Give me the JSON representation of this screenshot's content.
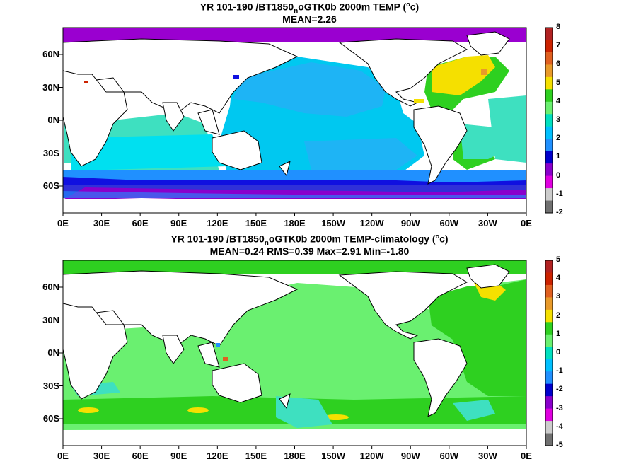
{
  "panels": [
    {
      "title_main": "YR 101-190 /BT1850",
      "title_sub": "n",
      "title_rest": "oGTK0b 2000m TEMP (",
      "unit_sup": "o",
      "unit_end": "c)",
      "stats": "MEAN=2.26",
      "colorbar_labels": [
        "8",
        "7",
        "6",
        "5",
        "4",
        "3",
        "2",
        "1",
        "0",
        "-1",
        "-2"
      ],
      "colorbar_colors": [
        "#b22222",
        "#cc2200",
        "#e06020",
        "#e89a2a",
        "#f5e000",
        "#2ed020",
        "#6af070",
        "#00e0c0",
        "#00c0ff",
        "#2090ff",
        "#0000cc",
        "#8a00cc",
        "#e000e0",
        "#cccccc",
        "#707070"
      ]
    },
    {
      "title_main": "YR 101-190 /BT1850",
      "title_sub": "n",
      "title_rest": "oGTK0b 2000m TEMP-climatology (",
      "unit_sup": "o",
      "unit_end": "c)",
      "stats": "MEAN=0.24   RMS=0.39   Max=2.91   Min=-1.80",
      "colorbar_labels": [
        "5",
        "4",
        "3",
        "2",
        "1",
        "0",
        "-1",
        "-2",
        "-3",
        "-4",
        "-5"
      ],
      "colorbar_colors": [
        "#b22222",
        "#cc2200",
        "#e06020",
        "#e89a2a",
        "#f5e000",
        "#2ed020",
        "#6af070",
        "#00e0c0",
        "#00c0ff",
        "#2090ff",
        "#0000cc",
        "#8a00cc",
        "#e000e0",
        "#cccccc",
        "#707070"
      ]
    }
  ],
  "lon_labels": [
    "0E",
    "30E",
    "60E",
    "90E",
    "120E",
    "150E",
    "180E",
    "150W",
    "120W",
    "90W",
    "60W",
    "30W",
    "0E"
  ],
  "lat_labels": [
    "60N",
    "30N",
    "0N",
    "30S",
    "60S"
  ]
}
